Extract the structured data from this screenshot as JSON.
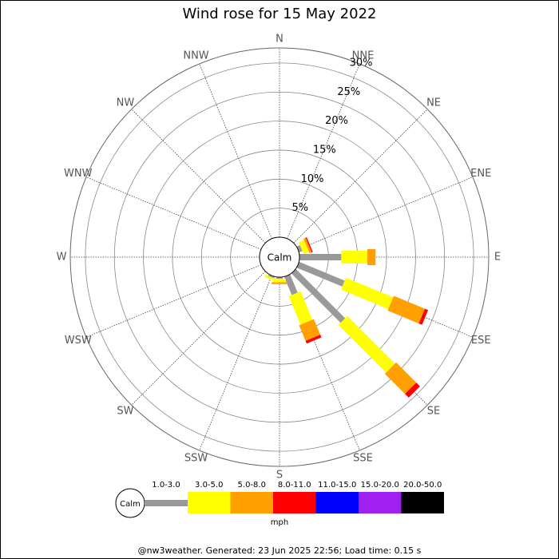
{
  "chart_data": {
    "type": "wind-rose",
    "title": "Wind rose for 15 May 2022",
    "directions": [
      "N",
      "NNE",
      "NE",
      "ENE",
      "E",
      "ESE",
      "SE",
      "SSE",
      "S",
      "SSW",
      "SW",
      "WSW",
      "W",
      "WNW",
      "NW",
      "NNW"
    ],
    "calm_label": "Calm",
    "units": "mph",
    "rlim": [
      0,
      32.6
    ],
    "rticks": [
      {
        "value": 5,
        "label": "5%"
      },
      {
        "value": 10,
        "label": "10%"
      },
      {
        "value": 15,
        "label": "15%"
      },
      {
        "value": 20,
        "label": "20%"
      },
      {
        "value": 25,
        "label": "25%"
      },
      {
        "value": 30,
        "label": "30%"
      }
    ],
    "series": [
      {
        "name": "1.0-3.0",
        "color": "#999999",
        "values": [
          0,
          0,
          0,
          0.6,
          7.2,
          8.5,
          12.0,
          3.4,
          0.3,
          0.3,
          0,
          0,
          0,
          0,
          0,
          0
        ]
      },
      {
        "name": "3.0-5.0",
        "color": "#ffff00",
        "values": [
          0,
          0,
          0,
          1.0,
          4.5,
          8.8,
          11.6,
          5.3,
          0.6,
          0.4,
          0,
          0,
          0,
          0,
          0,
          0
        ]
      },
      {
        "name": "5.0-8.0",
        "color": "#ff9f00",
        "values": [
          0,
          0,
          0,
          0.4,
          1.4,
          5.8,
          4.9,
          2.9,
          0.3,
          0,
          0,
          0,
          0,
          0,
          0,
          0
        ]
      },
      {
        "name": "8.0-11.0",
        "color": "#ff0000",
        "values": [
          0,
          0,
          0,
          0.2,
          0,
          0.6,
          0.9,
          0.5,
          0,
          0,
          0,
          0,
          0,
          0,
          0,
          0
        ]
      },
      {
        "name": "11.0-15.0",
        "color": "#0000ff",
        "values": [
          0,
          0,
          0,
          0,
          0,
          0,
          0,
          0,
          0,
          0,
          0,
          0,
          0,
          0,
          0,
          0
        ]
      },
      {
        "name": "15.0-20.0",
        "color": "#a020f0",
        "values": [
          0,
          0,
          0,
          0,
          0,
          0,
          0,
          0,
          0,
          0,
          0,
          0,
          0,
          0,
          0,
          0
        ]
      },
      {
        "name": "20.0-50.0",
        "color": "#000000",
        "values": [
          0,
          0,
          0,
          0,
          0,
          0,
          0,
          0,
          0,
          0,
          0,
          0,
          0,
          0,
          0,
          0
        ]
      }
    ]
  },
  "footer": "@nw3weather. Generated: 23 Jun 2025 22:56; Load time: 0.15 s"
}
